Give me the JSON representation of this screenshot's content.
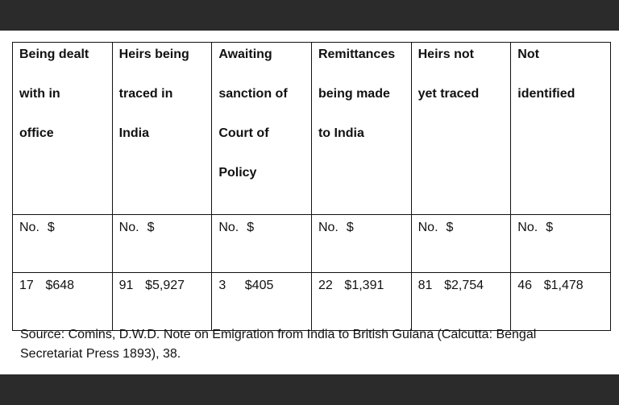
{
  "table": {
    "columns": [
      {
        "heading": [
          "Being dealt",
          "with in",
          "office"
        ],
        "units": [
          "No.",
          "$"
        ],
        "count": "17",
        "amount": "$648"
      },
      {
        "heading": [
          "Heirs being",
          "traced in",
          "India"
        ],
        "units": [
          "No.",
          "$"
        ],
        "count": "91",
        "amount": "$5,927"
      },
      {
        "heading": [
          "Awaiting",
          "sanction of",
          "Court of",
          "Policy"
        ],
        "units": [
          "No.",
          "$"
        ],
        "count": "3",
        "amount": "$405"
      },
      {
        "heading": [
          "Remittances",
          "being made",
          "to India"
        ],
        "units": [
          "No.",
          "$"
        ],
        "count": "22",
        "amount": "$1,391"
      },
      {
        "heading": [
          "Heirs not",
          "yet traced"
        ],
        "units": [
          "No.",
          "$"
        ],
        "count": "81",
        "amount": "$2,754"
      },
      {
        "heading": [
          "Not",
          "identified"
        ],
        "units": [
          "No.",
          "$"
        ],
        "count": "46",
        "amount": "$1,478"
      }
    ]
  },
  "source": {
    "line1": "Source: Comins, D.W.D. Note on Emigration from India to British Guiana (Calcutta: Bengal",
    "line2": "Secretariat Press 1893), 38."
  }
}
